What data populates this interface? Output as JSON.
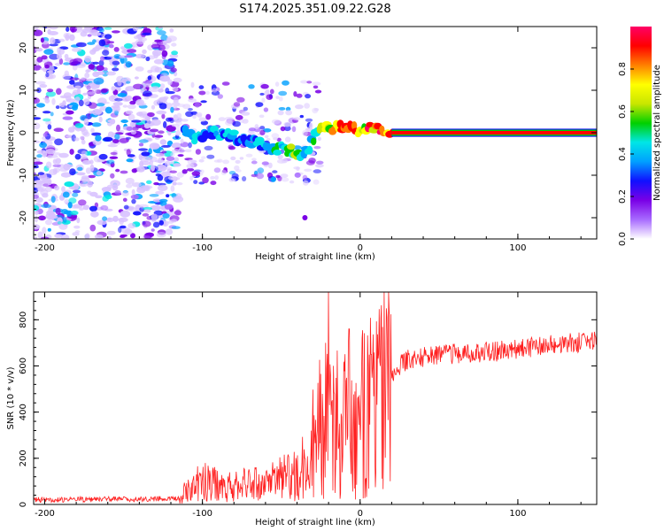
{
  "title": "S174.2025.351.09.22.G28",
  "chart_data": [
    {
      "type": "heatmap",
      "name": "spectrogram",
      "xlabel": "Height of straight line (km)",
      "ylabel": "Frequency (Hz)",
      "xlim": [
        -207,
        150
      ],
      "ylim": [
        -25,
        25
      ],
      "xticks": [
        -200,
        -100,
        0,
        100
      ],
      "yticks": [
        -20,
        -10,
        0,
        10,
        20
      ],
      "colorbar": {
        "label": "Normalized spectral amplitude",
        "range": [
          0,
          1
        ],
        "ticks": [
          0.0,
          0.2,
          0.4,
          0.6,
          0.8
        ],
        "colors": [
          "#ffffff",
          "#a86bff",
          "#7a00e6",
          "#1010ff",
          "#00a0ff",
          "#00e6e6",
          "#00d000",
          "#c8e600",
          "#ffff00",
          "#ff8000",
          "#ff0000",
          "#ff0066"
        ]
      },
      "ridge": [
        {
          "x": -112,
          "f": 0.0,
          "a": 0.3
        },
        {
          "x": -105,
          "f": -1.5,
          "a": 0.45
        },
        {
          "x": -95,
          "f": 0.5,
          "a": 0.35
        },
        {
          "x": -85,
          "f": -0.5,
          "a": 0.4
        },
        {
          "x": -75,
          "f": -1.5,
          "a": 0.3
        },
        {
          "x": -65,
          "f": -2.5,
          "a": 0.4
        },
        {
          "x": -55,
          "f": -3.5,
          "a": 0.45
        },
        {
          "x": -45,
          "f": -4.0,
          "a": 0.55
        },
        {
          "x": -38,
          "f": -5.0,
          "a": 0.55
        },
        {
          "x": -32,
          "f": -3.5,
          "a": 0.4
        },
        {
          "x": -27,
          "f": 1.5,
          "a": 0.55
        },
        {
          "x": -20,
          "f": 1.0,
          "a": 0.7
        },
        {
          "x": -10,
          "f": 1.5,
          "a": 0.75
        },
        {
          "x": 0,
          "f": 0.5,
          "a": 0.8
        },
        {
          "x": 10,
          "f": 1.0,
          "a": 0.85
        },
        {
          "x": 20,
          "f": 0.0,
          "a": 0.95
        },
        {
          "x": 150,
          "f": 0.0,
          "a": 0.95
        }
      ]
    },
    {
      "type": "line",
      "name": "snr",
      "xlabel": "Height of straight line (km)",
      "ylabel": "SNR (10 * v/v)",
      "xlim": [
        -207,
        150
      ],
      "ylim": [
        0,
        920
      ],
      "xticks": [
        -200,
        -100,
        0,
        100
      ],
      "yticks": [
        0,
        200,
        400,
        600,
        800
      ],
      "color": "#ff2020",
      "envelope": [
        {
          "x": -207,
          "y": 20
        },
        {
          "x": -115,
          "y": 25
        },
        {
          "x": -110,
          "y": 60
        },
        {
          "x": -100,
          "y": 100
        },
        {
          "x": -80,
          "y": 80
        },
        {
          "x": -60,
          "y": 90
        },
        {
          "x": -40,
          "y": 130
        },
        {
          "x": -30,
          "y": 200
        },
        {
          "x": -20,
          "y": 350
        },
        {
          "x": -10,
          "y": 360
        },
        {
          "x": 0,
          "y": 380
        },
        {
          "x": 10,
          "y": 440
        },
        {
          "x": 20,
          "y": 570
        },
        {
          "x": 30,
          "y": 630
        },
        {
          "x": 50,
          "y": 650
        },
        {
          "x": 80,
          "y": 660
        },
        {
          "x": 110,
          "y": 680
        },
        {
          "x": 150,
          "y": 710
        }
      ],
      "peaks": [
        {
          "x": -20,
          "y": 920
        },
        {
          "x": -22,
          "y": 700
        },
        {
          "x": -7,
          "y": 760
        },
        {
          "x": 7,
          "y": 650
        }
      ]
    }
  ]
}
